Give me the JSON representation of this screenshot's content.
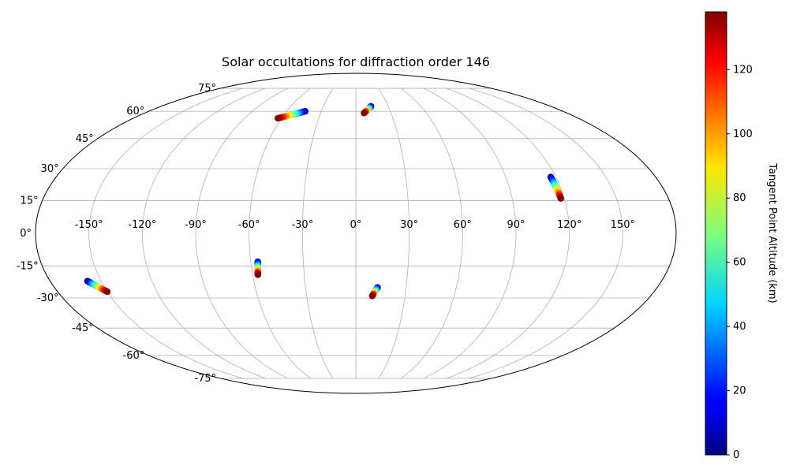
{
  "chart_data": {
    "type": "scatter",
    "projection": "mollweide",
    "title": "Solar occultations for diffraction order 146",
    "grid": true,
    "x_ticks": [
      "-150°",
      "-120°",
      "-90°",
      "-60°",
      "-30°",
      "0°",
      "30°",
      "60°",
      "90°",
      "120°",
      "150°"
    ],
    "y_ticks": [
      "75°",
      "60°",
      "45°",
      "30°",
      "15°",
      "0°",
      "-15°",
      "-30°",
      "-45°",
      "-60°",
      "-75°"
    ],
    "colorbar": {
      "label": "Tangent Point Altitude (km)",
      "range": [
        0,
        138
      ],
      "ticks": [
        "0",
        "20",
        "40",
        "60",
        "80",
        "100",
        "120"
      ],
      "colormap": "jet"
    },
    "tracks": [
      {
        "lon_low": -44,
        "lat_low": 60,
        "lon_high": -63,
        "lat_high": 56
      },
      {
        "lon_low": 14,
        "lat_low": 63,
        "lon_high": 7,
        "lat_high": 59
      },
      {
        "lon_low": 117,
        "lat_low": 26,
        "lon_high": 118,
        "lat_high": 16
      },
      {
        "lon_low": -56,
        "lat_low": -13,
        "lon_high": -57,
        "lat_high": -19
      },
      {
        "lon_low": 13,
        "lat_low": -25,
        "lon_high": 10,
        "lat_high": -29
      },
      {
        "lon_low": -158,
        "lat_low": -22,
        "lon_high": -150,
        "lat_high": -27
      }
    ]
  }
}
